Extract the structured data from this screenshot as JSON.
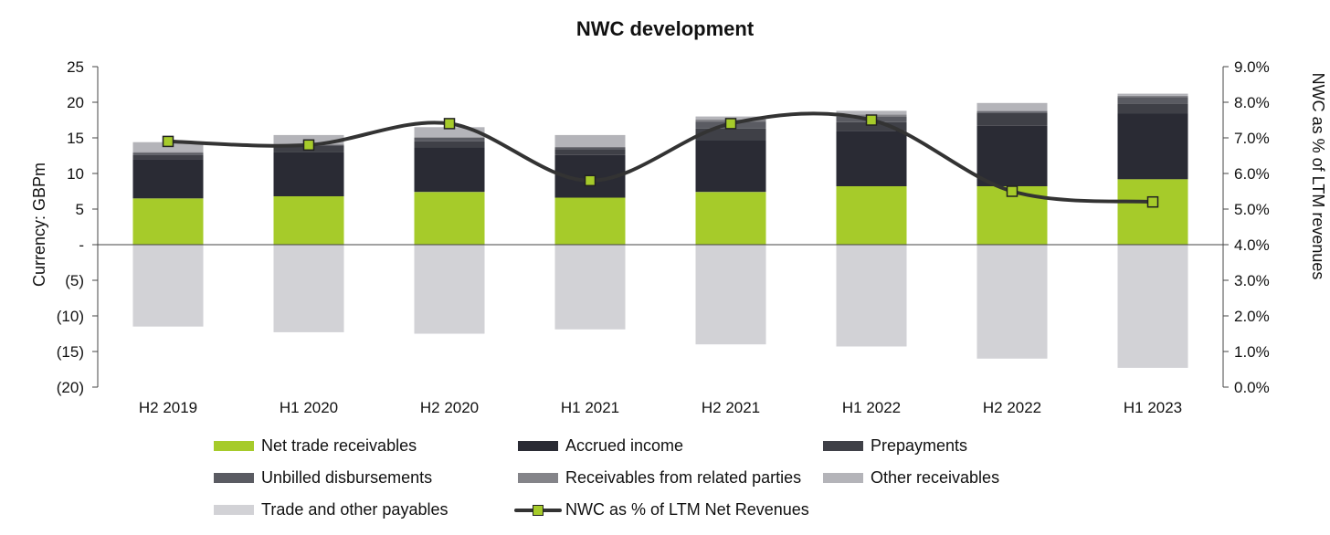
{
  "chart_data": {
    "type": "bar",
    "title": "NWC development",
    "ylabel": "Currency: GBPm",
    "y2label": "NWC as % of LTM revenues",
    "ylim": [
      -20,
      25
    ],
    "y_ticks": [
      25,
      20,
      15,
      10,
      5,
      0,
      -5,
      -10,
      -15,
      -20
    ],
    "y_tick_labels": [
      "25",
      "20",
      "15",
      "10",
      "5",
      "-",
      "(5)",
      "(10)",
      "(15)",
      "(20)"
    ],
    "y2lim": [
      0.0,
      9.0
    ],
    "y2_ticks": [
      9,
      8,
      7,
      6,
      5,
      4,
      3,
      2,
      1,
      0
    ],
    "y2_tick_labels": [
      "9.0%",
      "8.0%",
      "7.0%",
      "6.0%",
      "5.0%",
      "4.0%",
      "3.0%",
      "2.0%",
      "1.0%",
      "0.0%"
    ],
    "categories": [
      "H2 2019",
      "H1 2020",
      "H2 2020",
      "H1 2021",
      "H2 2021",
      "H1 2022",
      "H2 2022",
      "H1 2023"
    ],
    "series": [
      {
        "name": "Net trade receivables",
        "color": "#a6cb2a",
        "values": [
          6.5,
          6.8,
          7.4,
          6.6,
          7.4,
          8.2,
          8.2,
          9.2
        ]
      },
      {
        "name": "Accrued income",
        "color": "#2a2b34",
        "values": [
          5.5,
          6.2,
          6.3,
          6.0,
          7.3,
          7.8,
          8.5,
          9.2
        ]
      },
      {
        "name": "Prepayments",
        "color": "#3f4047",
        "values": [
          0.6,
          0.9,
          0.8,
          0.8,
          1.6,
          1.2,
          1.8,
          1.4
        ]
      },
      {
        "name": "Unbilled disbursements",
        "color": "#5a5b62",
        "values": [
          0.3,
          0.1,
          0.5,
          0.3,
          1.0,
          0.8,
          0.2,
          0.9
        ]
      },
      {
        "name": "Receivables from related parties",
        "color": "#848489",
        "values": [
          0.1,
          0.1,
          0.1,
          0.0,
          0.3,
          0.3,
          0.1,
          0.2
        ]
      },
      {
        "name": "Other receivables",
        "color": "#b4b4b9",
        "values": [
          1.4,
          1.3,
          1.4,
          1.7,
          0.4,
          0.5,
          1.1,
          0.3
        ]
      },
      {
        "name": "Trade and other payables",
        "color": "#d2d2d6",
        "values": [
          -11.5,
          -12.3,
          -12.5,
          -11.9,
          -14.0,
          -14.3,
          -16.0,
          -17.3
        ]
      }
    ],
    "line_series": {
      "name": "NWC as % of LTM Net Revenues",
      "axis": "secondary",
      "values": [
        6.9,
        6.8,
        7.4,
        5.8,
        7.4,
        7.5,
        5.5,
        5.2
      ]
    },
    "legend": {
      "position": "bottom",
      "items": [
        "Net trade receivables",
        "Accrued income",
        "Prepayments",
        "Unbilled disbursements",
        "Receivables from related parties",
        "Other receivables",
        "Trade and other payables",
        "NWC as % of LTM Net Revenues"
      ]
    },
    "colors": {
      "line": "#333333",
      "marker": "#a6cb2a",
      "axis": "#444444"
    }
  }
}
